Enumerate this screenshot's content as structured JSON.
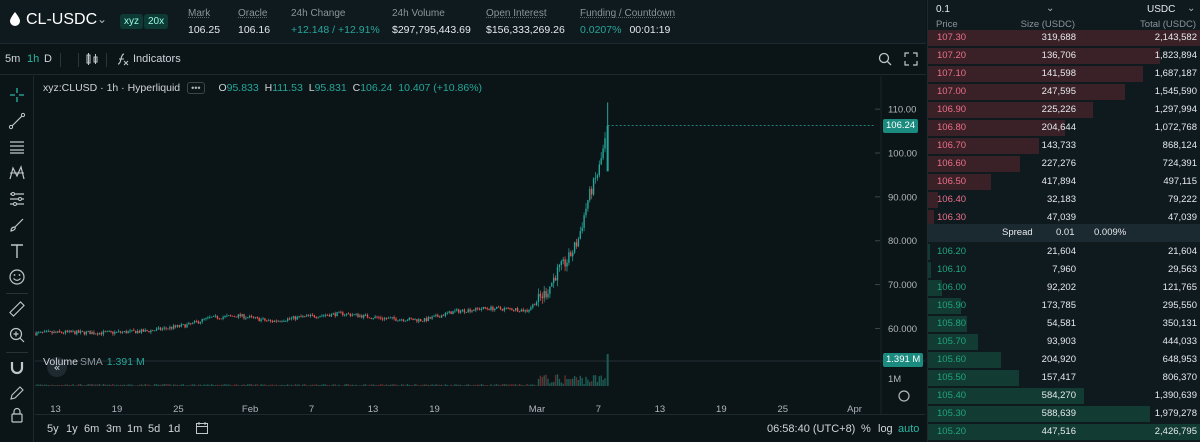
{
  "header": {
    "symbol": "CL-USDC",
    "tag_dex": "xyz",
    "tag_leverage": "20x",
    "stats": [
      {
        "label": "Mark",
        "value": "106.25",
        "green": false,
        "ul": true
      },
      {
        "label": "Oracle",
        "value": "106.16",
        "green": false,
        "ul": true
      },
      {
        "label": "24h Change",
        "value": "+12.148 / +12.91%",
        "green": true,
        "ul": false
      },
      {
        "label": "24h Volume",
        "value": "$297,795,443.69",
        "green": false,
        "ul": false
      },
      {
        "label": "Open Interest",
        "value": "$156,333,269.26",
        "green": false,
        "ul": true
      },
      {
        "label": "Funding / Countdown",
        "value": "0.0207%",
        "value2": "00:01:19",
        "green": true,
        "ul": true
      }
    ]
  },
  "toolbar": {
    "timeframes": [
      "5m",
      "1h",
      "D"
    ],
    "active_timeframe": "1h",
    "indicators_label": "Indicators"
  },
  "chart": {
    "legend_title": "xyz:CLUSD · 1h · Hyperliquid",
    "legend_dots": "•••",
    "ohlc": [
      {
        "k": "O",
        "v": "95.833"
      },
      {
        "k": "H",
        "v": "111.53"
      },
      {
        "k": "L",
        "v": "95.831"
      },
      {
        "k": "C",
        "v": "106.24"
      }
    ],
    "change": "10.407 (+10.86%)",
    "last_price_tag": "106.24",
    "volume_label": "Volume",
    "volume_sma_label": "SMA",
    "volume_value": "1.391 M",
    "volume_tag": "1.391 M",
    "volume_axis_label": "1M",
    "time_readout": "06:58:40 (UTC+8)",
    "scale_buttons": [
      "%",
      "log",
      "auto"
    ]
  },
  "chart_data": {
    "type": "candlestick",
    "y_ticks": [
      60.0,
      70.0,
      80.0,
      90.0,
      100.0,
      110.0
    ],
    "y_tick_labels": [
      "60.000",
      "70.000",
      "80.000",
      "90.000",
      "100.00",
      "110.00"
    ],
    "ylim": [
      56,
      113
    ],
    "x_tick_labels": [
      "13",
      "19",
      "25",
      "Feb",
      "7",
      "13",
      "19",
      "Mar",
      "7",
      "13",
      "19",
      "25",
      "Apr"
    ],
    "approx_close_path": [
      {
        "date": "Jan 11",
        "close": 58.9
      },
      {
        "date": "Jan 14",
        "close": 59.1
      },
      {
        "date": "Jan 18",
        "close": 59.0
      },
      {
        "date": "Jan 22",
        "close": 59.4
      },
      {
        "date": "Jan 26",
        "close": 60.8
      },
      {
        "date": "Jan 28",
        "close": 62.4
      },
      {
        "date": "Jan 31",
        "close": 62.9
      },
      {
        "date": "Feb 3",
        "close": 61.6
      },
      {
        "date": "Feb 6",
        "close": 62.6
      },
      {
        "date": "Feb 10",
        "close": 63.4
      },
      {
        "date": "Feb 14",
        "close": 62.3
      },
      {
        "date": "Feb 18",
        "close": 61.9
      },
      {
        "date": "Feb 21",
        "close": 63.9
      },
      {
        "date": "Feb 24",
        "close": 64.6
      },
      {
        "date": "Feb 27",
        "close": 64.4
      },
      {
        "date": "Feb 28",
        "close": 64.0
      },
      {
        "date": "Mar 2",
        "close": 68.5
      },
      {
        "date": "Mar 3",
        "close": 73.0
      },
      {
        "date": "Mar 4",
        "close": 75.5
      },
      {
        "date": "Mar 5",
        "close": 80.0
      },
      {
        "date": "Mar 6",
        "close": 89.5
      },
      {
        "date": "Mar 7",
        "close": 95.8
      },
      {
        "date": "Mar 8",
        "close": 106.24
      }
    ],
    "last_high": 111.53,
    "last_low": 95.831
  },
  "bottom_bar": {
    "ranges": [
      "5y",
      "1y",
      "6m",
      "3m",
      "1m",
      "5d",
      "1d"
    ]
  },
  "orderbook": {
    "tick": "0.1",
    "quote": "USDC",
    "col_price": "Price",
    "col_size": "Size (USDC)",
    "col_total": "Total (USDC)",
    "asks": [
      {
        "price": "107.30",
        "size": "319,688",
        "total": "2,143,582",
        "depth": 1.0
      },
      {
        "price": "107.20",
        "size": "136,706",
        "total": "1,823,894",
        "depth": 0.851
      },
      {
        "price": "107.10",
        "size": "141,598",
        "total": "1,687,187",
        "depth": 0.787
      },
      {
        "price": "107.00",
        "size": "247,595",
        "total": "1,545,590",
        "depth": 0.721
      },
      {
        "price": "106.90",
        "size": "225,226",
        "total": "1,297,994",
        "depth": 0.606
      },
      {
        "price": "106.80",
        "size": "204,644",
        "total": "1,072,768",
        "depth": 0.5
      },
      {
        "price": "106.70",
        "size": "143,733",
        "total": "868,124",
        "depth": 0.405
      },
      {
        "price": "106.60",
        "size": "227,276",
        "total": "724,391",
        "depth": 0.338
      },
      {
        "price": "106.50",
        "size": "417,894",
        "total": "497,115",
        "depth": 0.232
      },
      {
        "price": "106.40",
        "size": "32,183",
        "total": "79,222",
        "depth": 0.037
      },
      {
        "price": "106.30",
        "size": "47,039",
        "total": "47,039",
        "depth": 0.022
      }
    ],
    "spread_label": "Spread",
    "spread_value": "0.01",
    "spread_pct": "0.009%",
    "bids": [
      {
        "price": "106.20",
        "size": "21,604",
        "total": "21,604",
        "depth": 0.009
      },
      {
        "price": "106.10",
        "size": "7,960",
        "total": "29,563",
        "depth": 0.012
      },
      {
        "price": "106.00",
        "size": "92,202",
        "total": "121,765",
        "depth": 0.05
      },
      {
        "price": "105.90",
        "size": "173,785",
        "total": "295,550",
        "depth": 0.122
      },
      {
        "price": "105.80",
        "size": "54,581",
        "total": "350,131",
        "depth": 0.144
      },
      {
        "price": "105.70",
        "size": "93,903",
        "total": "444,033",
        "depth": 0.183
      },
      {
        "price": "105.60",
        "size": "204,920",
        "total": "648,953",
        "depth": 0.267
      },
      {
        "price": "105.50",
        "size": "157,417",
        "total": "806,370",
        "depth": 0.332
      },
      {
        "price": "105.40",
        "size": "584,270",
        "total": "1,390,639",
        "depth": 0.573
      },
      {
        "price": "105.30",
        "size": "588,639",
        "total": "1,979,278",
        "depth": 0.815
      },
      {
        "price": "105.20",
        "size": "447,516",
        "total": "2,426,795",
        "depth": 1.0
      }
    ]
  },
  "colors": {
    "up": "#26a69a",
    "down": "#ef5350",
    "ask": "#ed7088",
    "bid": "#1fa67d"
  }
}
